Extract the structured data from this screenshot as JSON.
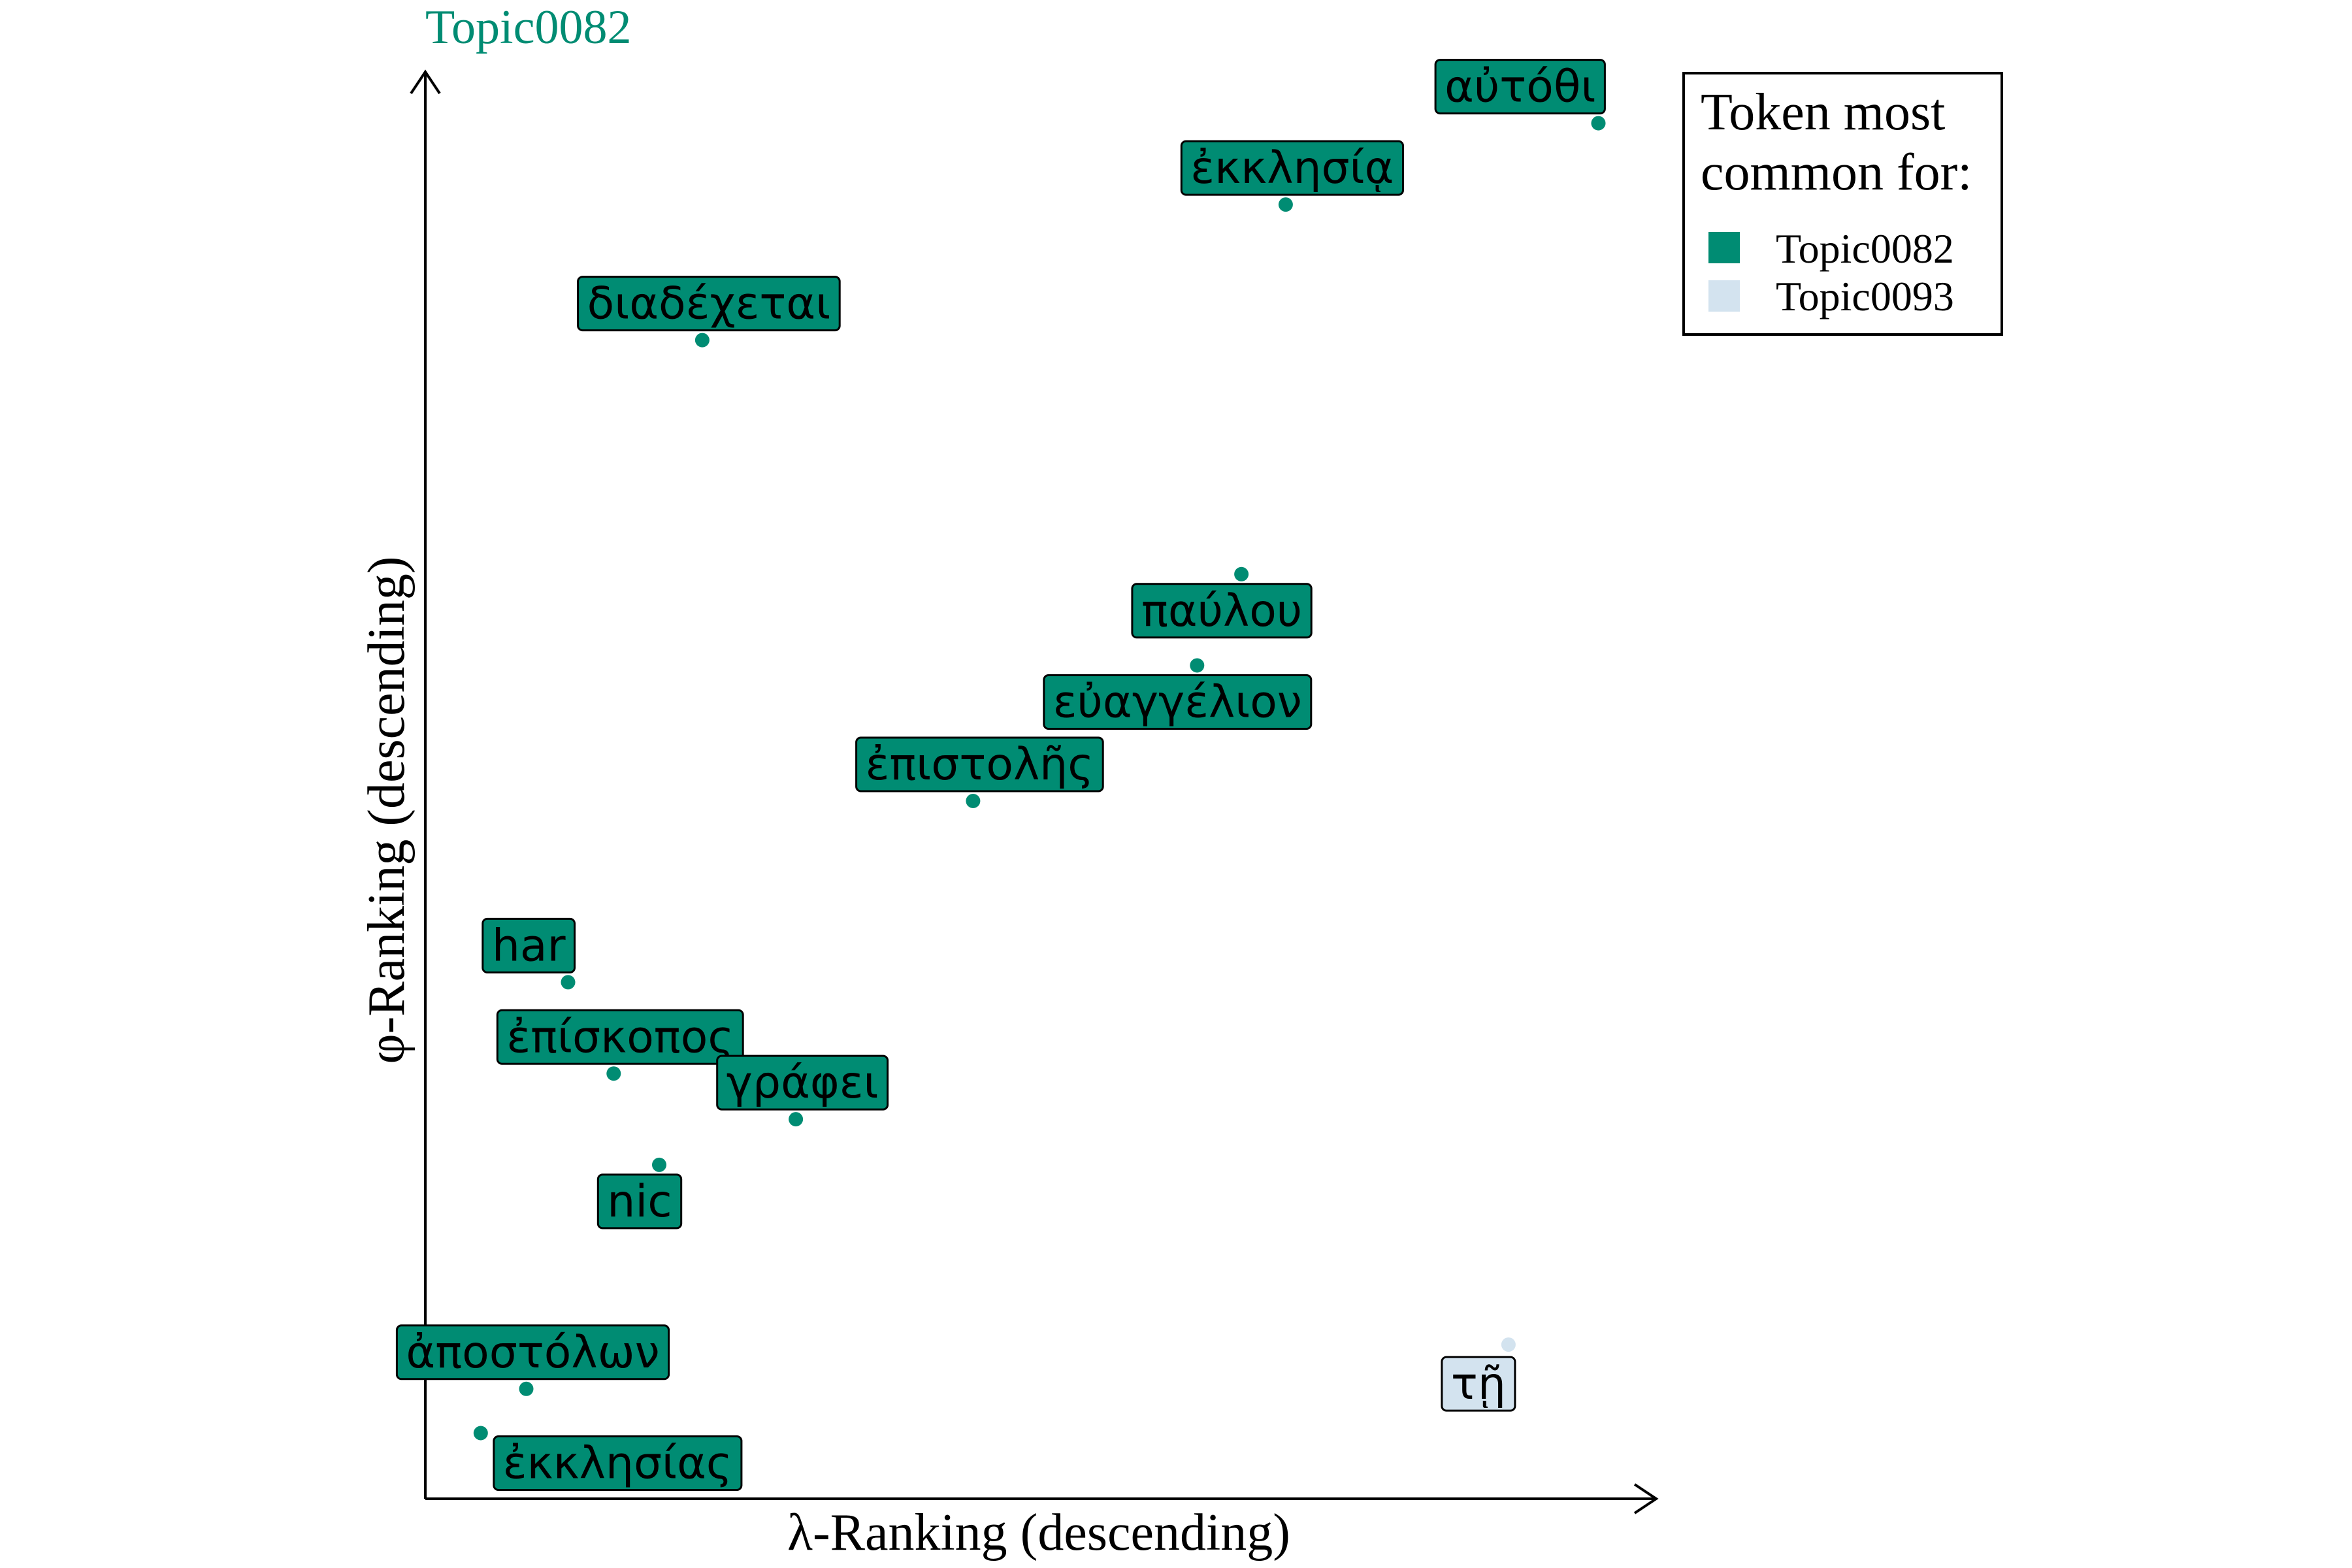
{
  "chart_data": {
    "type": "scatter",
    "title": "Topic0082",
    "xlabel": "λ-Ranking (descending)",
    "ylabel": "φ-Ranking (descending)",
    "xlim": [
      0,
      100
    ],
    "ylim": [
      0,
      100
    ],
    "grid": false,
    "legend": {
      "title_line1": "Token most",
      "title_line2": "common for:",
      "placement": "top-right",
      "entries": [
        {
          "name": "Topic0082",
          "color": "#008c73"
        },
        {
          "name": "Topic0093",
          "color": "#d3e3ef"
        }
      ]
    },
    "points": [
      {
        "label": "αὐτόθι",
        "x": 95.3,
        "y": 96.4,
        "series": 0,
        "label_pos": "above-left"
      },
      {
        "label": "ἐκκλησίᾳ",
        "x": 69.9,
        "y": 90.7,
        "series": 0,
        "label_pos": "above"
      },
      {
        "label": "διαδέχεται",
        "x": 22.5,
        "y": 81.2,
        "series": 0,
        "label_pos": "above"
      },
      {
        "label": "παύλου",
        "x": 66.3,
        "y": 64.8,
        "series": 0,
        "label_pos": "below"
      },
      {
        "label": "εὐαγγέλιον",
        "x": 62.7,
        "y": 58.4,
        "series": 0,
        "label_pos": "below"
      },
      {
        "label": "ἐπιστολῆς",
        "x": 44.5,
        "y": 48.9,
        "series": 0,
        "label_pos": "above"
      },
      {
        "label": "har",
        "x": 11.6,
        "y": 36.2,
        "series": 0,
        "label_pos": "above-left"
      },
      {
        "label": "ἐπίσκοπος",
        "x": 15.3,
        "y": 29.8,
        "series": 0,
        "label_pos": "above"
      },
      {
        "label": "γράφει",
        "x": 30.1,
        "y": 26.6,
        "series": 0,
        "label_pos": "above"
      },
      {
        "label": "nic",
        "x": 19.0,
        "y": 23.4,
        "series": 0,
        "label_pos": "below"
      },
      {
        "label": "τῇ",
        "x": 88.0,
        "y": 10.8,
        "series": 1,
        "label_pos": "below-left"
      },
      {
        "label": "ἀποστόλων",
        "x": 8.2,
        "y": 7.7,
        "series": 0,
        "label_pos": "above"
      },
      {
        "label": "ἐκκλησίας",
        "x": 4.5,
        "y": 4.6,
        "series": 0,
        "label_pos": "below-right"
      }
    ]
  }
}
